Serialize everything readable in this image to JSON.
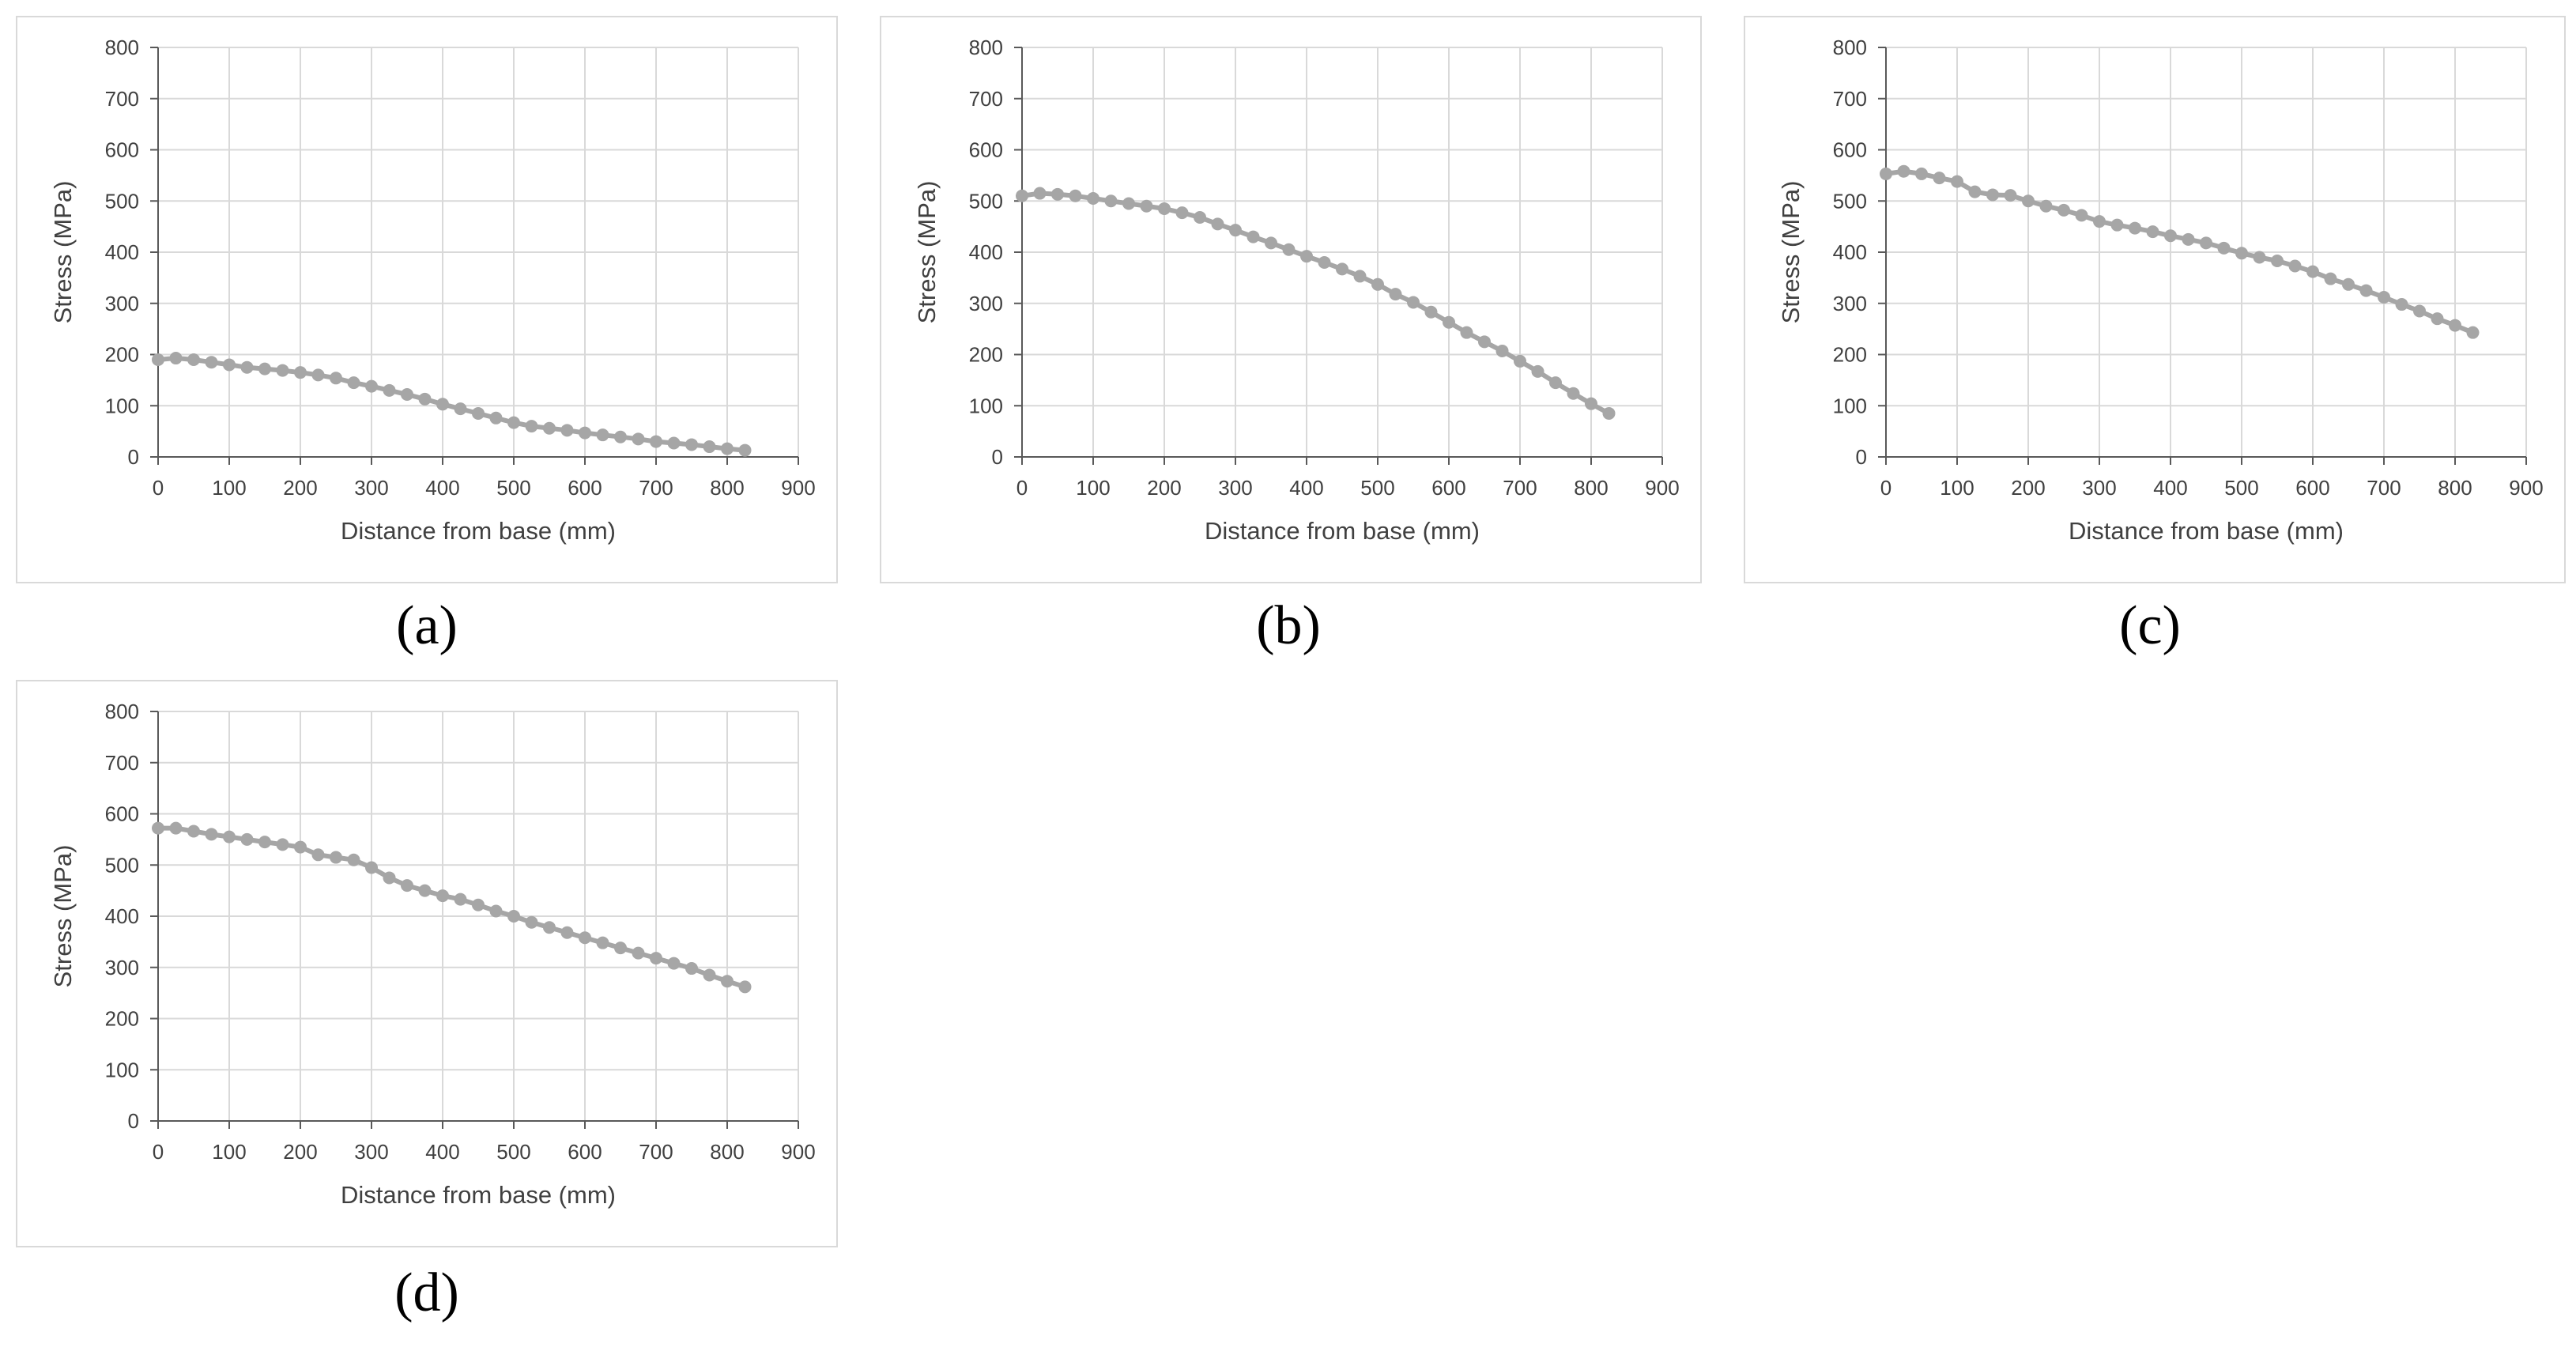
{
  "figure": {
    "panel_labels": [
      "(a)",
      "(b)",
      "(c)",
      "(d)"
    ]
  },
  "chart_data": [
    {
      "type": "line",
      "title": "",
      "xlabel": "Distance from base (mm)",
      "ylabel": "Stress (MPa)",
      "xlim": [
        0,
        900
      ],
      "ylim": [
        0,
        800
      ],
      "xticks": [
        "0",
        "100",
        "200",
        "300",
        "400",
        "500",
        "600",
        "700",
        "800",
        "900"
      ],
      "yticks": [
        "0",
        "100",
        "200",
        "300",
        "400",
        "500",
        "600",
        "700",
        "800"
      ],
      "grid": true,
      "series_color": "#a6a6a6",
      "x": [
        0,
        25,
        50,
        75,
        100,
        125,
        150,
        175,
        200,
        225,
        250,
        275,
        300,
        325,
        350,
        375,
        400,
        425,
        450,
        475,
        500,
        525,
        550,
        575,
        600,
        625,
        650,
        675,
        700,
        725,
        750,
        775,
        800,
        825
      ],
      "y": [
        190,
        193,
        190,
        185,
        180,
        175,
        172,
        169,
        165,
        160,
        154,
        145,
        138,
        130,
        122,
        113,
        103,
        94,
        85,
        76,
        67,
        60,
        56,
        52,
        47,
        43,
        39,
        35,
        30,
        27,
        24,
        20,
        16,
        13
      ]
    },
    {
      "type": "line",
      "title": "",
      "xlabel": "Distance from base (mm)",
      "ylabel": "Stress (MPa)",
      "xlim": [
        0,
        900
      ],
      "ylim": [
        0,
        800
      ],
      "xticks": [
        "0",
        "100",
        "200",
        "300",
        "400",
        "500",
        "600",
        "700",
        "800",
        "900"
      ],
      "yticks": [
        "0",
        "100",
        "200",
        "300",
        "400",
        "500",
        "600",
        "700",
        "800"
      ],
      "grid": true,
      "series_color": "#a6a6a6",
      "x": [
        0,
        25,
        50,
        75,
        100,
        125,
        150,
        175,
        200,
        225,
        250,
        275,
        300,
        325,
        350,
        375,
        400,
        425,
        450,
        475,
        500,
        525,
        550,
        575,
        600,
        625,
        650,
        675,
        700,
        725,
        750,
        775,
        800,
        825
      ],
      "y": [
        510,
        515,
        513,
        510,
        505,
        500,
        495,
        490,
        485,
        477,
        468,
        455,
        443,
        430,
        418,
        405,
        392,
        380,
        367,
        353,
        337,
        318,
        302,
        283,
        263,
        243,
        225,
        207,
        187,
        167,
        145,
        124,
        104,
        85
      ]
    },
    {
      "type": "line",
      "title": "",
      "xlabel": "Distance from base (mm)",
      "ylabel": "Stress (MPa)",
      "xlim": [
        0,
        900
      ],
      "ylim": [
        0,
        800
      ],
      "xticks": [
        "0",
        "100",
        "200",
        "300",
        "400",
        "500",
        "600",
        "700",
        "800",
        "900"
      ],
      "yticks": [
        "0",
        "100",
        "200",
        "300",
        "400",
        "500",
        "600",
        "700",
        "800"
      ],
      "grid": true,
      "series_color": "#a6a6a6",
      "x": [
        0,
        25,
        50,
        75,
        100,
        125,
        150,
        175,
        200,
        225,
        250,
        275,
        300,
        325,
        350,
        375,
        400,
        425,
        450,
        475,
        500,
        525,
        550,
        575,
        600,
        625,
        650,
        675,
        700,
        725,
        750,
        775,
        800,
        825
      ],
      "y": [
        553,
        558,
        553,
        545,
        538,
        518,
        512,
        511,
        500,
        490,
        482,
        472,
        460,
        453,
        447,
        440,
        432,
        425,
        418,
        408,
        398,
        390,
        383,
        373,
        362,
        348,
        337,
        325,
        312,
        298,
        285,
        270,
        257,
        243
      ]
    },
    {
      "type": "line",
      "title": "",
      "xlabel": "Distance from base (mm)",
      "ylabel": "Stress (MPa)",
      "xlim": [
        0,
        900
      ],
      "ylim": [
        0,
        800
      ],
      "xticks": [
        "0",
        "100",
        "200",
        "300",
        "400",
        "500",
        "600",
        "700",
        "800",
        "900"
      ],
      "yticks": [
        "0",
        "100",
        "200",
        "300",
        "400",
        "500",
        "600",
        "700",
        "800"
      ],
      "grid": true,
      "series_color": "#a6a6a6",
      "x": [
        0,
        25,
        50,
        75,
        100,
        125,
        150,
        175,
        200,
        225,
        250,
        275,
        300,
        325,
        350,
        375,
        400,
        425,
        450,
        475,
        500,
        525,
        550,
        575,
        600,
        625,
        650,
        675,
        700,
        725,
        750,
        775,
        800,
        825
      ],
      "y": [
        572,
        572,
        566,
        560,
        555,
        550,
        545,
        540,
        535,
        520,
        515,
        510,
        495,
        475,
        460,
        450,
        440,
        433,
        422,
        410,
        400,
        388,
        378,
        368,
        358,
        348,
        338,
        328,
        318,
        308,
        298,
        285,
        273,
        262
      ]
    }
  ]
}
